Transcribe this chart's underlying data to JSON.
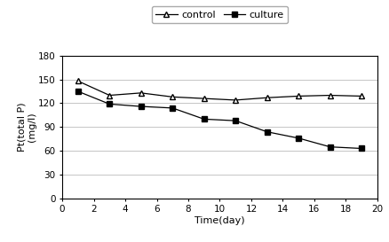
{
  "control_x": [
    1,
    3,
    5,
    7,
    9,
    11,
    13,
    15,
    17,
    19
  ],
  "control_y": [
    148,
    130,
    133,
    128,
    126,
    124,
    127,
    129,
    130,
    129
  ],
  "culture_x": [
    1,
    3,
    5,
    7,
    9,
    11,
    13,
    15,
    17,
    19
  ],
  "culture_y": [
    135,
    119,
    116,
    114,
    100,
    98,
    84,
    76,
    65,
    63
  ],
  "xlabel": "Time(day)",
  "ylabel": "Pt(total P)\n(mg/l)",
  "xlim": [
    0,
    20
  ],
  "ylim": [
    0,
    180
  ],
  "yticks": [
    0,
    30,
    60,
    90,
    120,
    150,
    180
  ],
  "xticks": [
    0,
    2,
    4,
    6,
    8,
    10,
    12,
    14,
    16,
    18,
    20
  ],
  "control_label": "control",
  "culture_label": "culture",
  "line_color": "#000000",
  "bg_color": "#ffffff",
  "grid_color": "#bbbbbb",
  "legend_fontsize": 8,
  "axis_fontsize": 8,
  "tick_fontsize": 7.5
}
